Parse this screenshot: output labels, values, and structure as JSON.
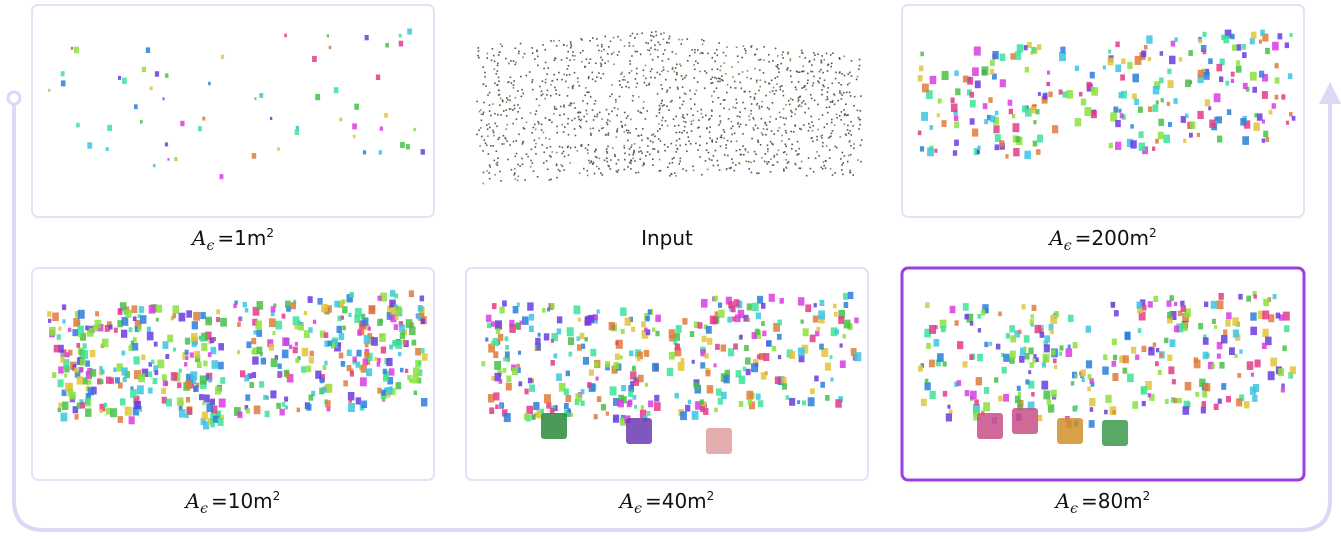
{
  "panels": [
    {
      "symbol": "A",
      "subscript": "ϵ",
      "value": "=1m",
      "exponent": "2"
    },
    {
      "caption": "Input"
    },
    {
      "symbol": "A",
      "subscript": "ϵ",
      "value": "=200m",
      "exponent": "2"
    },
    {
      "symbol": "A",
      "subscript": "ϵ",
      "value": "=10m",
      "exponent": "2"
    },
    {
      "symbol": "A",
      "subscript": "ϵ",
      "value": "=40m",
      "exponent": "2"
    },
    {
      "symbol": "A",
      "subscript": "ϵ",
      "value": "=80m",
      "exponent": "2"
    }
  ]
}
